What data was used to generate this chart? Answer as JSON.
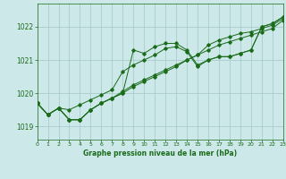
{
  "title": "Graphe pression niveau de la mer (hPa)",
  "bg_color": "#cce8e8",
  "grid_color": "#aacccc",
  "line_color": "#1a6b1a",
  "x_min": 0,
  "x_max": 23,
  "y_min": 1018.6,
  "y_max": 1022.7,
  "y_ticks": [
    1019,
    1020,
    1021,
    1022
  ],
  "x_ticks": [
    0,
    1,
    2,
    3,
    4,
    5,
    6,
    7,
    8,
    9,
    10,
    11,
    12,
    13,
    14,
    15,
    16,
    17,
    18,
    19,
    20,
    21,
    22,
    23
  ],
  "lines": [
    [
      1019.7,
      1019.35,
      1019.55,
      1019.2,
      1019.2,
      1019.5,
      1019.7,
      1019.85,
      1020.0,
      1021.3,
      1021.2,
      1021.4,
      1021.5,
      1021.5,
      1021.3,
      1020.85,
      1021.0,
      1021.1,
      1021.1,
      1021.2,
      1021.3,
      1022.0,
      1022.1,
      1022.3
    ],
    [
      1019.7,
      1019.35,
      1019.55,
      1019.5,
      1019.65,
      1019.8,
      1019.95,
      1020.1,
      1020.65,
      1020.85,
      1021.0,
      1021.15,
      1021.35,
      1021.4,
      1021.25,
      1020.8,
      1021.0,
      1021.1,
      1021.1,
      1021.2,
      1021.3,
      1022.0,
      1022.1,
      1022.3
    ],
    [
      1019.7,
      1019.35,
      1019.55,
      1019.2,
      1019.2,
      1019.5,
      1019.7,
      1019.85,
      1020.0,
      1020.2,
      1020.35,
      1020.5,
      1020.65,
      1020.8,
      1021.0,
      1021.15,
      1021.3,
      1021.45,
      1021.55,
      1021.65,
      1021.75,
      1021.85,
      1021.95,
      1022.2
    ],
    [
      1019.7,
      1019.35,
      1019.55,
      1019.2,
      1019.2,
      1019.5,
      1019.7,
      1019.85,
      1020.05,
      1020.25,
      1020.4,
      1020.55,
      1020.7,
      1020.85,
      1021.0,
      1021.15,
      1021.45,
      1021.6,
      1021.7,
      1021.8,
      1021.85,
      1021.95,
      1022.05,
      1022.25
    ]
  ]
}
